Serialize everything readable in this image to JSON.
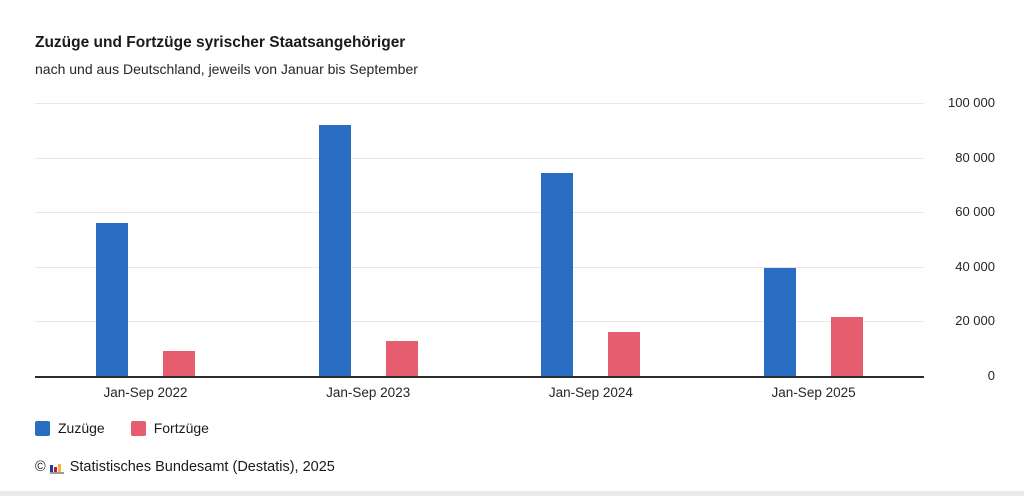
{
  "header": {
    "title": "Zuzüge und Fortzüge syrischer Staatsangehöriger",
    "subtitle": "nach und aus Deutschland, jeweils von Januar bis September"
  },
  "chart_data": {
    "type": "bar",
    "categories": [
      "Jan-Sep 2022",
      "Jan-Sep 2023",
      "Jan-Sep 2024",
      "Jan-Sep 2025"
    ],
    "series": [
      {
        "name": "Zuzüge",
        "color": "#2a6ec4",
        "values": [
          56000,
          92000,
          74500,
          39500
        ]
      },
      {
        "name": "Fortzüge",
        "color": "#e55d6e",
        "values": [
          9000,
          13000,
          16000,
          21500
        ]
      }
    ],
    "title": "Zuzüge und Fortzüge syrischer Staatsangehöriger",
    "subtitle": "nach und aus Deutschland, jeweils von Januar bis September",
    "xlabel": "",
    "ylabel": "",
    "ylim": [
      0,
      100000
    ],
    "yticks": [
      0,
      20000,
      40000,
      60000,
      80000,
      100000
    ],
    "ytick_labels": [
      "0",
      "20 000",
      "40 000",
      "60 000",
      "80 000",
      "100 000"
    ],
    "grid": true,
    "y_axis_side": "right",
    "legend_position": "bottom-left",
    "gridline_color": "#e8e8e8",
    "axis_line_color": "#2b2b2b"
  },
  "legend": {
    "items": [
      {
        "label": "Zuzüge"
      },
      {
        "label": "Fortzüge"
      }
    ]
  },
  "footer": {
    "copyright": "©",
    "source": "Statistisches Bundesamt (Destatis), 2025",
    "logo_colors": {
      "bar1": "#1c3f94",
      "bar2": "#d51130",
      "bar3": "#f8b334",
      "base": "#9a9a9a"
    }
  }
}
